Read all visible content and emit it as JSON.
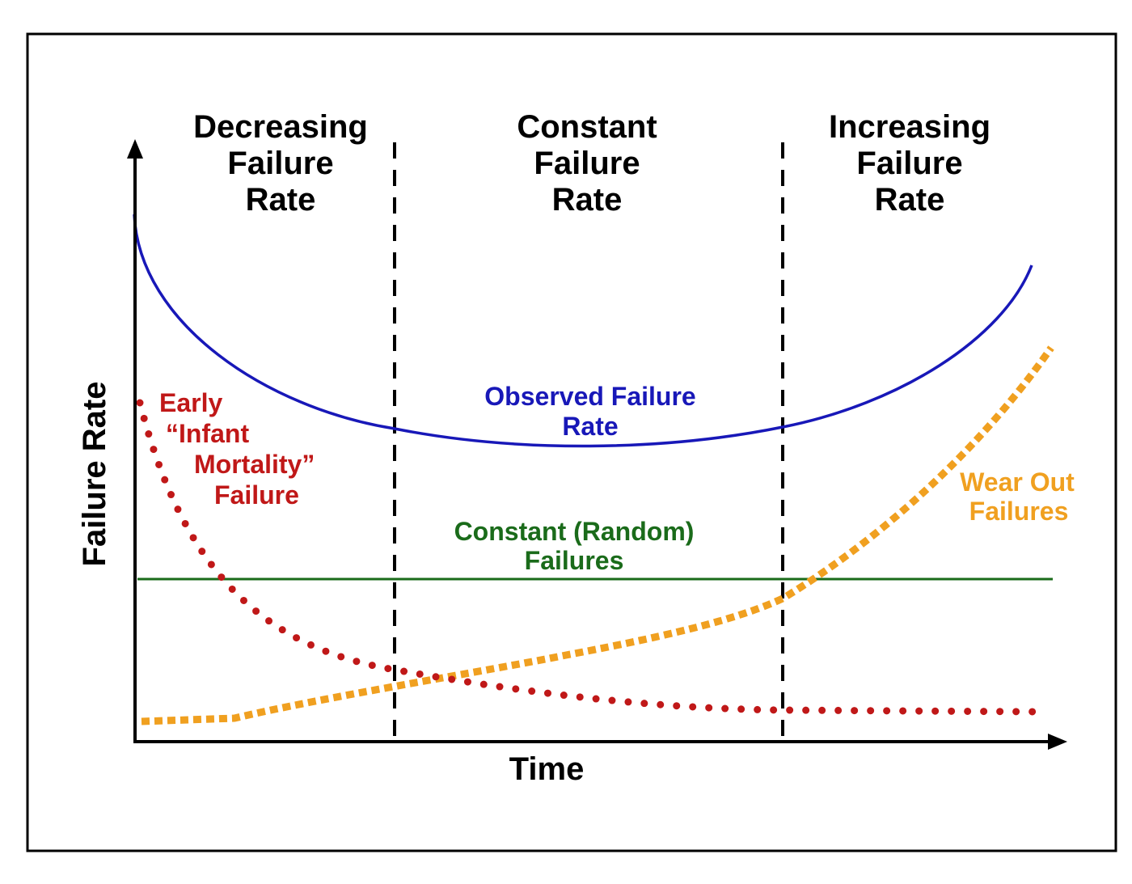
{
  "regions": [
    [
      "Decreasing",
      "Failure",
      "Rate"
    ],
    [
      "Constant",
      "Failure",
      "Rate"
    ],
    [
      "Increasing",
      "Failure",
      "Rate"
    ]
  ],
  "curves": {
    "observed": [
      "Observed Failure",
      "Rate"
    ],
    "early": [
      "Early",
      "“Infant",
      "Mortality”",
      "Failure"
    ],
    "constant": [
      "Constant (Random)",
      "Failures"
    ],
    "wear_out": [
      "Wear Out",
      "Failures"
    ]
  },
  "axes": {
    "x": "Time",
    "y": "Failure Rate"
  }
}
